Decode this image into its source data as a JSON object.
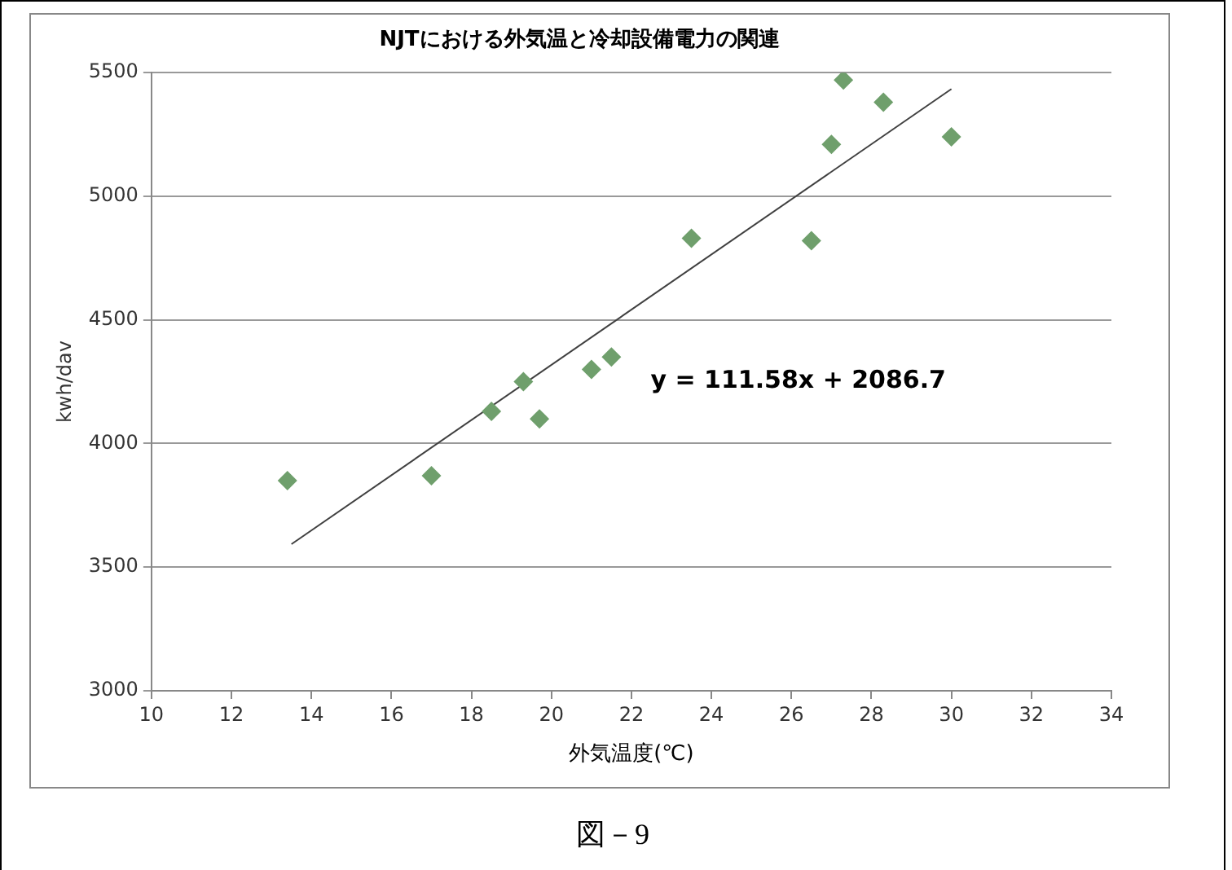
{
  "chart_data": {
    "type": "scatter",
    "title": "NJTにおける外気温と冷却設備電力の関連",
    "xlabel": "外気温度(℃)",
    "ylabel": "kwh/dav",
    "annotations": [
      "y = 111.58x + 2086.7",
      "図－9"
    ],
    "xlim": [
      10,
      34
    ],
    "xticks": [
      10,
      12,
      14,
      16,
      18,
      20,
      22,
      24,
      26,
      28,
      30,
      32,
      34
    ],
    "ylim": [
      3000,
      5500
    ],
    "yticks": [
      3000,
      3500,
      4000,
      4500,
      5000,
      5500
    ],
    "grid": "y",
    "legend": false,
    "marker": "diamond",
    "series": [
      {
        "type": "scatter",
        "color": "#6f9f6c",
        "x": [
          13.4,
          17.0,
          18.5,
          19.3,
          19.7,
          21.0,
          21.5,
          23.5,
          26.5,
          27.0,
          27.3,
          28.3,
          30.0
        ],
        "values": [
          3850,
          3870,
          4130,
          4250,
          4100,
          4300,
          4350,
          4830,
          4820,
          5210,
          5470,
          5380,
          5240
        ]
      },
      {
        "type": "line",
        "color": "#404040",
        "marker": "none",
        "line_style": "solid",
        "x": [
          13.5,
          30
        ],
        "values": [
          3593,
          5434
        ]
      }
    ]
  }
}
